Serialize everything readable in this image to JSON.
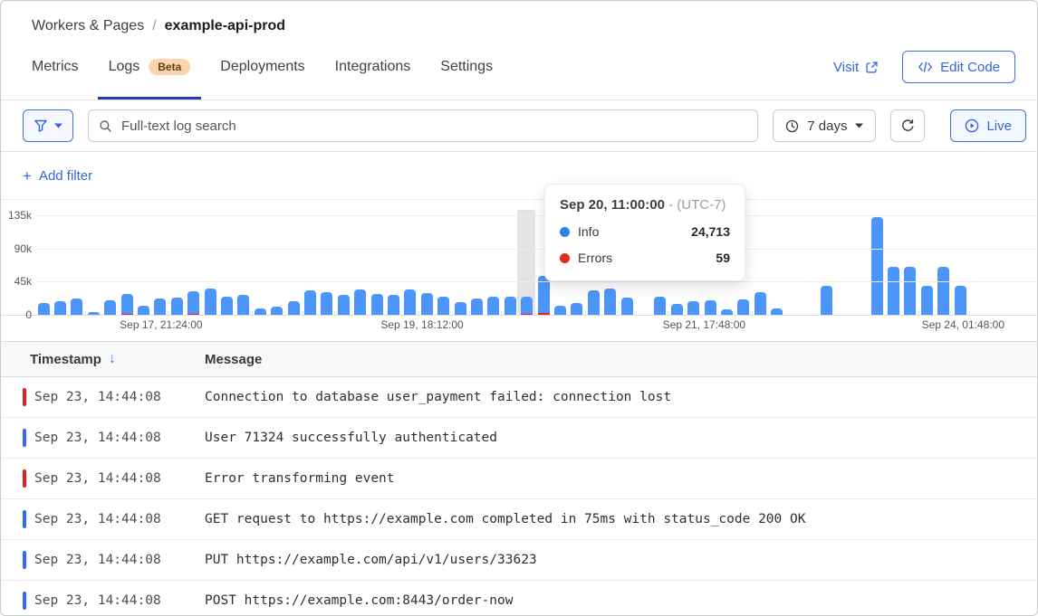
{
  "breadcrumb": {
    "parent": "Workers & Pages",
    "separator": "/",
    "current": "example-api-prod"
  },
  "tabs": {
    "items": [
      {
        "label": "Metrics"
      },
      {
        "label": "Logs",
        "badge": "Beta",
        "active": true
      },
      {
        "label": "Deployments"
      },
      {
        "label": "Integrations"
      },
      {
        "label": "Settings"
      }
    ]
  },
  "header": {
    "visit_label": "Visit",
    "edit_code_label": "Edit Code"
  },
  "filter_bar": {
    "search_placeholder": "Full-text log search",
    "time_range_label": "7 days",
    "live_label": "Live"
  },
  "add_filter": {
    "plus": "+",
    "label": "Add filter"
  },
  "tooltip": {
    "title": "Sep 20, 11:00:00",
    "sep": "-",
    "tz": "(UTC-7)",
    "rows": [
      {
        "label": "Info",
        "value": "24,713",
        "color": "#2f80ed"
      },
      {
        "label": "Errors",
        "value": "59",
        "color": "#e0291f"
      }
    ]
  },
  "chart_data": {
    "type": "stacked-bar",
    "series_names": [
      "Info",
      "Errors"
    ],
    "ylim": [
      0,
      135000
    ],
    "y_ticks": [
      "135k",
      "90k",
      "45k",
      "0"
    ],
    "x_ticks": [
      {
        "label": "Sep 17, 21:24:00",
        "pos": 0.124
      },
      {
        "label": "Sep 19, 18:12:00",
        "pos": 0.385
      },
      {
        "label": "Sep 21, 17:48:00",
        "pos": 0.667
      },
      {
        "label": "Sep 24, 01:48:00",
        "pos": 0.926
      }
    ],
    "highlight_index": 29,
    "highlighted_point": {
      "time": "Sep 20, 11:00:00",
      "info": 24713,
      "errors": 59
    },
    "bars": [
      [
        16000,
        0
      ],
      [
        18000,
        0
      ],
      [
        22000,
        0
      ],
      [
        4000,
        0
      ],
      [
        20000,
        0
      ],
      [
        27000,
        1500
      ],
      [
        12000,
        0
      ],
      [
        22000,
        0
      ],
      [
        23000,
        0
      ],
      [
        31000,
        900
      ],
      [
        36000,
        0
      ],
      [
        25000,
        0
      ],
      [
        27000,
        0
      ],
      [
        9000,
        0
      ],
      [
        11000,
        0
      ],
      [
        18000,
        0
      ],
      [
        33000,
        0
      ],
      [
        31000,
        0
      ],
      [
        27000,
        0
      ],
      [
        34000,
        0
      ],
      [
        28000,
        0
      ],
      [
        27000,
        0
      ],
      [
        34000,
        0
      ],
      [
        30000,
        0
      ],
      [
        25000,
        0
      ],
      [
        17000,
        0
      ],
      [
        22000,
        0
      ],
      [
        25000,
        0
      ],
      [
        25000,
        0
      ],
      [
        24713,
        59
      ],
      [
        50000,
        2600
      ],
      [
        12000,
        0
      ],
      [
        16000,
        0
      ],
      [
        33000,
        0
      ],
      [
        36000,
        0
      ],
      [
        23000,
        0
      ],
      [
        0,
        0
      ],
      [
        25000,
        0
      ],
      [
        15000,
        0
      ],
      [
        18000,
        0
      ],
      [
        20000,
        0
      ],
      [
        7000,
        0
      ],
      [
        21000,
        0
      ],
      [
        31000,
        0
      ],
      [
        9000,
        0
      ],
      [
        0,
        0
      ],
      [
        0,
        0
      ],
      [
        39000,
        0
      ],
      [
        0,
        0
      ],
      [
        0,
        0
      ],
      [
        132000,
        0
      ],
      [
        65000,
        0
      ],
      [
        65000,
        0
      ],
      [
        39000,
        0
      ],
      [
        65000,
        0
      ],
      [
        39000,
        0
      ]
    ]
  },
  "table": {
    "sort_icon": "↓",
    "columns": [
      {
        "label": "Timestamp"
      },
      {
        "label": "Message"
      }
    ],
    "rows": [
      {
        "severity": "error",
        "timestamp": "Sep 23, 14:44:08",
        "message": "Connection to database user_payment failed: connection lost"
      },
      {
        "severity": "info",
        "timestamp": "Sep 23, 14:44:08",
        "message": "User 71324 successfully authenticated"
      },
      {
        "severity": "error",
        "timestamp": "Sep 23, 14:44:08",
        "message": "Error transforming event"
      },
      {
        "severity": "info",
        "timestamp": "Sep 23, 14:44:08",
        "message": "GET request to https://example.com completed in 75ms with status_code 200 OK"
      },
      {
        "severity": "info",
        "timestamp": "Sep 23, 14:44:08",
        "message": "PUT https://example.com/api/v1/users/33623"
      },
      {
        "severity": "info",
        "timestamp": "Sep 23, 14:44:08",
        "message": "POST https://example.com:8443/order-now"
      }
    ]
  },
  "colors": {
    "accent_blue": "#3464e0",
    "tab_underline": "#1f3fad",
    "bar_blue": "#4b96f8",
    "error_red": "#e0291f",
    "info_indicator": "#2f6bf3",
    "error_indicator": "#e02020"
  }
}
